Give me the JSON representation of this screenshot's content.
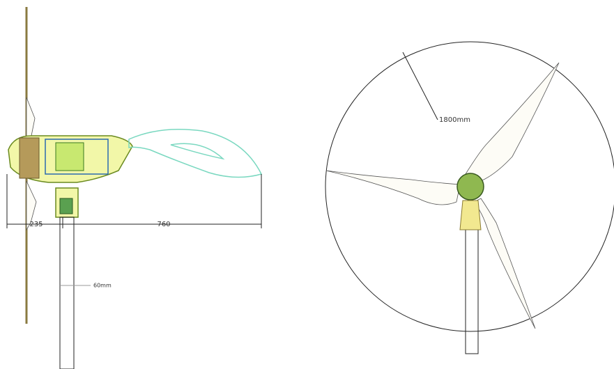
{
  "side_view": {
    "dimension_front": "235",
    "dimension_rear": "760",
    "tower_width": "60mm"
  },
  "front_view": {
    "rotor_radius": "1800mm"
  }
}
